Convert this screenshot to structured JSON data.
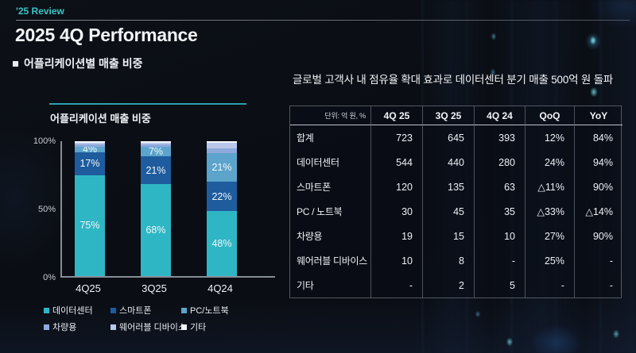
{
  "header": {
    "eyebrow": "'25 Review",
    "title": "2025 4Q Performance",
    "section": "어플리케이션별 매출 비중",
    "headline": "글로벌 고객사 내 점유율 확대 효과로 데이터센터 분기 매출 500억 원 돌파"
  },
  "colors": {
    "accent_teal": "#38c5c7",
    "chart_rule": "#2ba0ac",
    "axis_gray": "#868d96",
    "background": "#0b0e15"
  },
  "chart_data": [
    {
      "type": "bar",
      "stacked": true,
      "title": "어플리케이션 매출 비중",
      "categories": [
        "4Q25",
        "3Q25",
        "4Q24"
      ],
      "series": [
        {
          "name": "데이터센터",
          "color": "#2fb6c5",
          "values": [
            75,
            68,
            48
          ],
          "labels": [
            "75%",
            "68%",
            "48%"
          ]
        },
        {
          "name": "스마트폰",
          "color": "#1f5c9e",
          "values": [
            17,
            21,
            22
          ],
          "labels": [
            "17%",
            "21%",
            "22%"
          ]
        },
        {
          "name": "PC/노트북",
          "color": "#5ca4cb",
          "values": [
            4,
            7,
            21
          ],
          "labels": [
            "4%",
            "7%",
            "21%"
          ]
        },
        {
          "name": "차량용",
          "color": "#8ea9db",
          "values": [
            1.5,
            1.5,
            4
          ],
          "labels": [
            "",
            "",
            ""
          ]
        },
        {
          "name": "웨어러블 디바이스",
          "color": "#b9c7ea",
          "values": [
            1.5,
            1.5,
            4
          ],
          "labels": [
            "",
            "",
            ""
          ]
        },
        {
          "name": "기타",
          "color": "#f2f5f9",
          "values": [
            1,
            1,
            1
          ],
          "labels": [
            "",
            "",
            ""
          ]
        }
      ],
      "yticks": [
        "100%",
        "50%",
        "0%"
      ],
      "ylim": [
        0,
        100
      ],
      "grid": false,
      "legend_position": "bottom"
    },
    {
      "type": "table",
      "unit_label": "단위: 억 원, %",
      "columns": [
        "4Q 25",
        "3Q 25",
        "4Q 24",
        "QoQ",
        "YoY"
      ],
      "rows": [
        {
          "label": "합계",
          "values": [
            "723",
            "645",
            "393",
            "12%",
            "84%"
          ]
        },
        {
          "label": "데이터센터",
          "values": [
            "544",
            "440",
            "280",
            "24%",
            "94%"
          ]
        },
        {
          "label": "스마트폰",
          "values": [
            "120",
            "135",
            "63",
            "△11%",
            "90%"
          ]
        },
        {
          "label": "PC / 노트북",
          "values": [
            "30",
            "45",
            "35",
            "△33%",
            "△14%"
          ]
        },
        {
          "label": "차량용",
          "values": [
            "19",
            "15",
            "10",
            "27%",
            "90%"
          ]
        },
        {
          "label": "웨어러블 디바이스",
          "values": [
            "10",
            "8",
            "-",
            "25%",
            "-"
          ]
        },
        {
          "label": "기타",
          "values": [
            "-",
            "2",
            "5",
            "-",
            "-"
          ]
        }
      ]
    }
  ]
}
